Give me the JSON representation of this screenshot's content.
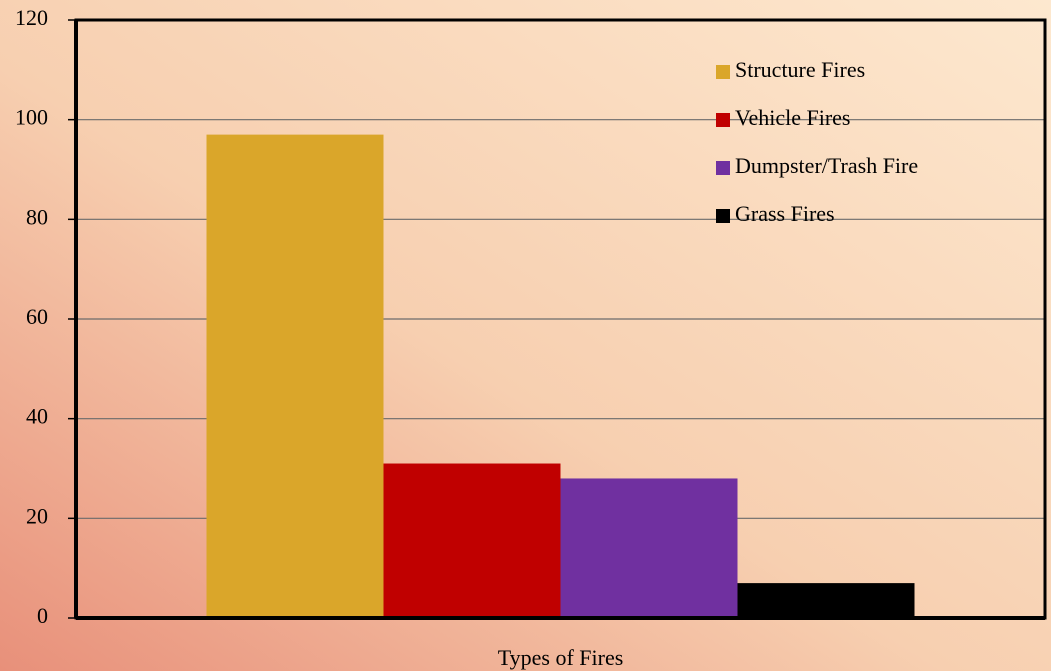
{
  "chart_data": {
    "type": "bar",
    "categories": [
      "Types of Fires"
    ],
    "series": [
      {
        "name": "Structure Fires",
        "color": "#daa62a",
        "values": [
          97
        ]
      },
      {
        "name": "Vehicle Fires",
        "color": "#c00000",
        "values": [
          31
        ]
      },
      {
        "name": "Dumpster/Trash Fire",
        "color": "#7030a0",
        "values": [
          28
        ]
      },
      {
        "name": "Grass Fires",
        "color": "#000000",
        "values": [
          7
        ]
      }
    ],
    "ylim": [
      0,
      120
    ],
    "yticks": [
      0,
      20,
      40,
      60,
      80,
      100,
      120
    ],
    "grid": true,
    "legend": "top-right"
  }
}
